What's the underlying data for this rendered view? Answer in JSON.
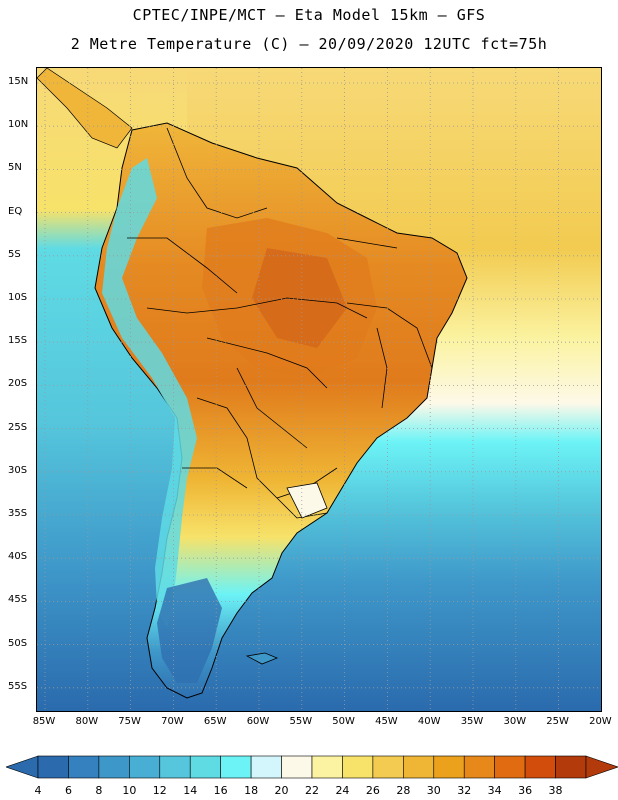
{
  "title": {
    "line1": "CPTEC/INPE/MCT –  Eta Model 15km – GFS",
    "line2": "2 Metre Temperature (C) – 20/09/2020 12UTC fct=75h"
  },
  "axes": {
    "lat_labels": [
      "15N",
      "10N",
      "5N",
      "EQ",
      "5S",
      "10S",
      "15S",
      "20S",
      "25S",
      "30S",
      "35S",
      "40S",
      "45S",
      "50S",
      "55S"
    ],
    "lon_labels": [
      "85W",
      "80W",
      "75W",
      "70W",
      "65W",
      "60W",
      "55W",
      "50W",
      "45W",
      "40W",
      "35W",
      "30W",
      "25W",
      "20W"
    ]
  },
  "colorbar": {
    "levels": [
      "4",
      "6",
      "8",
      "10",
      "12",
      "14",
      "16",
      "18",
      "20",
      "22",
      "24",
      "26",
      "28",
      "30",
      "32",
      "34",
      "36",
      "38"
    ],
    "colors": [
      "#2a6aad",
      "#3581bf",
      "#3e97c9",
      "#49aed3",
      "#55c6dc",
      "#5fdbe4",
      "#6cf3f6",
      "#d2f6fb",
      "#fdf9e8",
      "#fbf3a1",
      "#f7e26a",
      "#f2cb50",
      "#efb534",
      "#eba11c",
      "#e7881a",
      "#e06b10",
      "#d24d0c",
      "#b33a0a"
    ],
    "low_arrow_color": "#2a6aad",
    "high_arrow_color": "#b33a0a"
  },
  "map": {
    "ocean_color": "#3fa8d0",
    "grid_color": "#9a9a9a",
    "land_colors": {
      "hot": "#e07b1c",
      "warm": "#f0b63a",
      "mild": "#f7d977",
      "cool": "#fbf3a1",
      "andes": "#5fdbe4",
      "cold": "#2f6fb0"
    }
  }
}
